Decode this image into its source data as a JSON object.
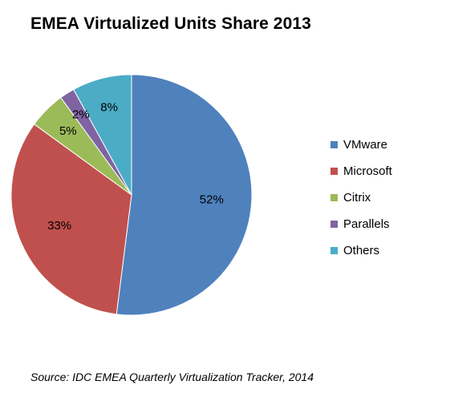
{
  "chart_data": {
    "type": "pie",
    "title": "EMEA Virtualized Units Share 2013",
    "categories": [
      "VMware",
      "Microsoft",
      "Citrix",
      "Parallels",
      "Others"
    ],
    "values": [
      52,
      33,
      5,
      2,
      8
    ],
    "labels": [
      "52%",
      "33%",
      "5%",
      "2%",
      "8%"
    ],
    "colors": [
      "#4F81BD",
      "#C0504D",
      "#9BBB59",
      "#8064A2",
      "#4BACC6"
    ],
    "start": "12 o'clock",
    "direction": "clockwise",
    "legend": "right",
    "source": "Source: IDC EMEA Quarterly Virtualization Tracker, 2014"
  }
}
